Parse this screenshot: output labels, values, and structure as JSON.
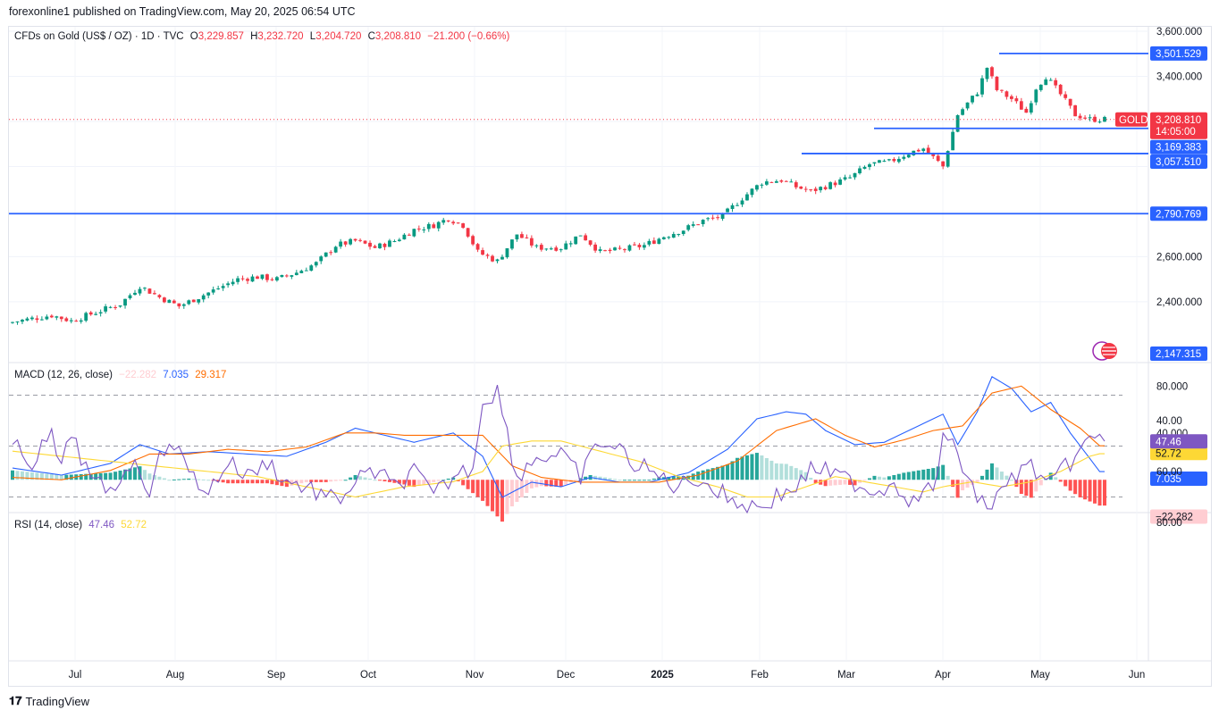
{
  "header": {
    "published": "forexonline1 published on TradingView.com, May 20, 2025 06:54 UTC"
  },
  "legend_main": {
    "symbol": "CFDs on Gold (US$ / OZ) · 1D · TVC",
    "o_label": "O",
    "o_value": "3,229.857",
    "h_label": "H",
    "h_value": "3,232.720",
    "l_label": "L",
    "l_value": "3,204.720",
    "c_label": "C",
    "c_value": "3,208.810",
    "change": "−21.200 (−0.66%)"
  },
  "legend_macd": {
    "label": "MACD (12, 26, close)",
    "hist": "−22.282",
    "macd": "7.035",
    "signal": "29.317"
  },
  "legend_rsi": {
    "label": "RSI (14, close)",
    "rsi": "47.46",
    "ma": "52.72"
  },
  "footer": {
    "brand": "TradingView"
  },
  "colors": {
    "up": "#089981",
    "down": "#f23645",
    "level": "#2962ff",
    "macd": "#2962ff",
    "signal": "#ff6d00",
    "rsi": "#7e57c2",
    "rsi_ma": "#fdd835",
    "hist_up_strong": "#26a69a",
    "hist_up_weak": "#b2dfdb",
    "hist_down_strong": "#ff5252",
    "hist_down_weak": "#ffcdd2",
    "rsi_band": "#ede7f6"
  },
  "chart_data": {
    "type": "candlestick",
    "symbol_tag": "GOLD",
    "timeframe": "1D",
    "price_axis": {
      "ticks": [
        "3,600.000",
        "3,400.000",
        "2,600.000",
        "2,400.000"
      ],
      "tick_values": [
        3600,
        3400,
        2600,
        2400
      ],
      "range": [
        2130,
        3620
      ]
    },
    "time_axis": {
      "labels": [
        "Jul",
        "Aug",
        "Sep",
        "Oct",
        "Nov",
        "Dec",
        "2025",
        "Feb",
        "Mar",
        "Apr",
        "May",
        "Jun"
      ],
      "bold": [
        false,
        false,
        false,
        false,
        false,
        false,
        true,
        false,
        false,
        false,
        false,
        false
      ]
    },
    "levels": [
      {
        "value": 3501.529,
        "label": "3,501.529",
        "from_date": "2025-04-22"
      },
      {
        "value": 3169.383,
        "label": "3,169.383",
        "from_date": "2025-03-12"
      },
      {
        "value": 3057.51,
        "label": "3,057.510",
        "from_date": "2025-02-14"
      },
      {
        "value": 2790.769,
        "label": "2,790.769",
        "from_date": "2024-06-01"
      }
    ],
    "last_price": {
      "value": 3208.81,
      "label": "3,208.810",
      "countdown": "14:05:00"
    },
    "low_marker": {
      "value": 2147.315,
      "label": "2,147.315"
    },
    "close_anchors": [
      [
        0,
        2310
      ],
      [
        8,
        2340
      ],
      [
        12,
        2315
      ],
      [
        18,
        2360
      ],
      [
        22,
        2390
      ],
      [
        26,
        2470
      ],
      [
        30,
        2420
      ],
      [
        34,
        2380
      ],
      [
        38,
        2420
      ],
      [
        42,
        2460
      ],
      [
        46,
        2500
      ],
      [
        50,
        2510
      ],
      [
        54,
        2500
      ],
      [
        58,
        2530
      ],
      [
        62,
        2570
      ],
      [
        66,
        2650
      ],
      [
        70,
        2670
      ],
      [
        74,
        2640
      ],
      [
        78,
        2670
      ],
      [
        82,
        2720
      ],
      [
        86,
        2740
      ],
      [
        89,
        2770
      ],
      [
        92,
        2740
      ],
      [
        95,
        2620
      ],
      [
        99,
        2580
      ],
      [
        103,
        2700
      ],
      [
        107,
        2640
      ],
      [
        112,
        2640
      ],
      [
        116,
        2700
      ],
      [
        120,
        2620
      ],
      [
        124,
        2630
      ],
      [
        129,
        2650
      ],
      [
        133,
        2690
      ],
      [
        137,
        2720
      ],
      [
        141,
        2760
      ],
      [
        145,
        2780
      ],
      [
        149,
        2860
      ],
      [
        153,
        2930
      ],
      [
        157,
        2940
      ],
      [
        160,
        2910
      ],
      [
        163,
        2890
      ],
      [
        167,
        2920
      ],
      [
        171,
        2950
      ],
      [
        175,
        3010
      ],
      [
        179,
        3020
      ],
      [
        183,
        3060
      ],
      [
        186,
        3080
      ],
      [
        188,
        3040
      ],
      [
        190,
        3000
      ],
      [
        193,
        3230
      ],
      [
        197,
        3330
      ],
      [
        199,
        3440
      ],
      [
        201,
        3340
      ],
      [
        204,
        3300
      ],
      [
        207,
        3240
      ],
      [
        209,
        3350
      ],
      [
        211,
        3400
      ],
      [
        214,
        3320
      ],
      [
        217,
        3230
      ],
      [
        220,
        3210
      ],
      [
        222,
        3209
      ]
    ],
    "macd_anchors": [
      [
        0,
        10
      ],
      [
        10,
        4
      ],
      [
        20,
        14
      ],
      [
        26,
        30
      ],
      [
        32,
        22
      ],
      [
        40,
        24
      ],
      [
        48,
        22
      ],
      [
        56,
        20
      ],
      [
        64,
        32
      ],
      [
        70,
        44
      ],
      [
        76,
        38
      ],
      [
        82,
        32
      ],
      [
        90,
        40
      ],
      [
        96,
        20
      ],
      [
        100,
        -15
      ],
      [
        106,
        -2
      ],
      [
        112,
        -6
      ],
      [
        118,
        2
      ],
      [
        124,
        -2
      ],
      [
        130,
        -2
      ],
      [
        138,
        6
      ],
      [
        146,
        26
      ],
      [
        152,
        52
      ],
      [
        158,
        58
      ],
      [
        162,
        56
      ],
      [
        166,
        42
      ],
      [
        172,
        30
      ],
      [
        178,
        32
      ],
      [
        184,
        44
      ],
      [
        190,
        56
      ],
      [
        193,
        30
      ],
      [
        197,
        58
      ],
      [
        200,
        88
      ],
      [
        204,
        78
      ],
      [
        208,
        58
      ],
      [
        212,
        66
      ],
      [
        216,
        40
      ],
      [
        222,
        7
      ]
    ],
    "signal_anchors": [
      [
        0,
        2
      ],
      [
        10,
        0
      ],
      [
        20,
        8
      ],
      [
        28,
        22
      ],
      [
        36,
        22
      ],
      [
        44,
        26
      ],
      [
        52,
        24
      ],
      [
        60,
        28
      ],
      [
        68,
        40
      ],
      [
        74,
        40
      ],
      [
        80,
        38
      ],
      [
        88,
        38
      ],
      [
        96,
        38
      ],
      [
        102,
        12
      ],
      [
        108,
        2
      ],
      [
        116,
        -2
      ],
      [
        124,
        -2
      ],
      [
        132,
        -2
      ],
      [
        140,
        4
      ],
      [
        148,
        16
      ],
      [
        156,
        42
      ],
      [
        164,
        52
      ],
      [
        170,
        38
      ],
      [
        176,
        28
      ],
      [
        182,
        34
      ],
      [
        188,
        42
      ],
      [
        194,
        46
      ],
      [
        200,
        74
      ],
      [
        206,
        80
      ],
      [
        212,
        60
      ],
      [
        218,
        44
      ],
      [
        222,
        29
      ]
    ],
    "rsi_anchors": [
      [
        0,
        50
      ],
      [
        4,
        56
      ],
      [
        8,
        46
      ],
      [
        10,
        60
      ],
      [
        12,
        44
      ],
      [
        16,
        64
      ],
      [
        20,
        68
      ],
      [
        24,
        56
      ],
      [
        28,
        66
      ],
      [
        32,
        46
      ],
      [
        36,
        60
      ],
      [
        40,
        68
      ],
      [
        44,
        56
      ],
      [
        48,
        62
      ],
      [
        52,
        56
      ],
      [
        56,
        64
      ],
      [
        60,
        66
      ],
      [
        66,
        72
      ],
      [
        70,
        64
      ],
      [
        74,
        60
      ],
      [
        78,
        66
      ],
      [
        82,
        60
      ],
      [
        86,
        70
      ],
      [
        90,
        62
      ],
      [
        94,
        58
      ],
      [
        96,
        32
      ],
      [
        99,
        28
      ],
      [
        103,
        62
      ],
      [
        107,
        54
      ],
      [
        112,
        54
      ],
      [
        116,
        62
      ],
      [
        120,
        48
      ],
      [
        124,
        52
      ],
      [
        128,
        58
      ],
      [
        132,
        62
      ],
      [
        136,
        66
      ],
      [
        140,
        62
      ],
      [
        144,
        68
      ],
      [
        148,
        72
      ],
      [
        152,
        74
      ],
      [
        156,
        70
      ],
      [
        160,
        66
      ],
      [
        164,
        58
      ],
      [
        168,
        62
      ],
      [
        172,
        64
      ],
      [
        176,
        68
      ],
      [
        180,
        64
      ],
      [
        184,
        72
      ],
      [
        188,
        66
      ],
      [
        190,
        48
      ],
      [
        193,
        52
      ],
      [
        196,
        68
      ],
      [
        200,
        74
      ],
      [
        204,
        62
      ],
      [
        208,
        58
      ],
      [
        212,
        66
      ],
      [
        216,
        56
      ],
      [
        220,
        48
      ],
      [
        222,
        47
      ]
    ],
    "rsi_ma_anchors": [
      [
        0,
        52
      ],
      [
        10,
        54
      ],
      [
        20,
        56
      ],
      [
        30,
        58
      ],
      [
        40,
        60
      ],
      [
        50,
        62
      ],
      [
        60,
        66
      ],
      [
        70,
        70
      ],
      [
        80,
        66
      ],
      [
        90,
        64
      ],
      [
        96,
        60
      ],
      [
        100,
        50
      ],
      [
        106,
        48
      ],
      [
        112,
        48
      ],
      [
        120,
        52
      ],
      [
        128,
        56
      ],
      [
        136,
        62
      ],
      [
        144,
        66
      ],
      [
        150,
        70
      ],
      [
        156,
        70
      ],
      [
        162,
        66
      ],
      [
        168,
        62
      ],
      [
        174,
        64
      ],
      [
        180,
        66
      ],
      [
        186,
        68
      ],
      [
        190,
        66
      ],
      [
        196,
        64
      ],
      [
        202,
        66
      ],
      [
        208,
        64
      ],
      [
        214,
        60
      ],
      [
        220,
        54
      ],
      [
        222,
        53
      ]
    ],
    "macd_axis": {
      "ticks": [
        "80.000",
        "40.000"
      ],
      "tick_values": [
        80,
        40
      ],
      "range": [
        -28,
        100
      ]
    },
    "rsi_axis": {
      "ticks": [
        "80.00",
        "60.00",
        "40.00"
      ],
      "tick_values": [
        80,
        60,
        40
      ],
      "range": [
        20,
        80
      ],
      "band": [
        30,
        70
      ]
    }
  }
}
